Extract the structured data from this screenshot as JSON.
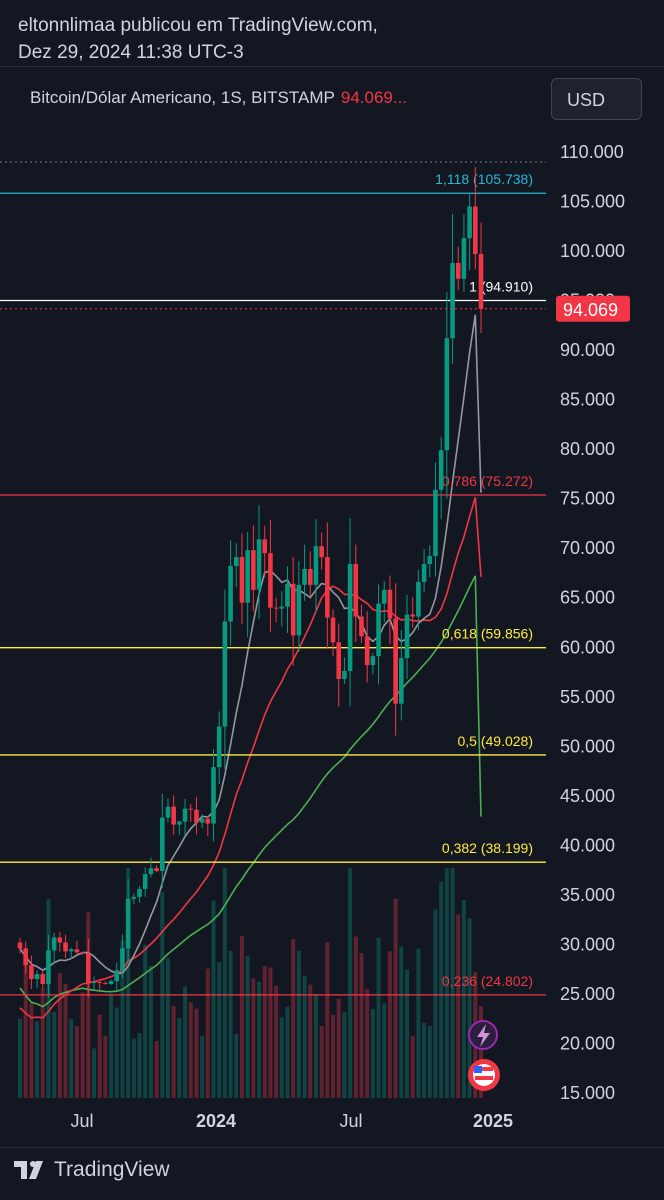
{
  "header": {
    "line1": "eltonnlimaa publicou em TradingView.com,",
    "line2": "Dez 29, 2024 11:38 UTC-3"
  },
  "symbol": {
    "name": "Bitcoin/Dólar Americano, 1S, BITSTAMP",
    "price": "94.069..."
  },
  "currency_button": "USD",
  "footer": {
    "brand": "TradingView",
    "logo_icon": "tradingview-logo-icon"
  },
  "chart_icons": [
    "lightning-icon",
    "us-flag-icon"
  ],
  "colors": {
    "up": "#089981",
    "down": "#f23645",
    "fib_top": "#2bb7d6",
    "fib_red": "#f23645",
    "fib_yellow": "#ffeb3b",
    "fib_white": "#ffffff",
    "ma_fast": "#9598a1",
    "ma_mid": "#f23645",
    "ma_slow": "#4caf50"
  },
  "chart_data": {
    "type": "candlestick",
    "title": "",
    "y_axis": {
      "ticks": [
        "110.000",
        "105.000",
        "100.000",
        "95.000",
        "90.000",
        "85.000",
        "80.000",
        "75.000",
        "70.000",
        "65.000",
        "60.000",
        "55.000",
        "50.000",
        "45.000",
        "40.000",
        "35.000",
        "30.000",
        "25.000",
        "20.000",
        "15.000"
      ],
      "ylim": [
        15000,
        110000
      ],
      "position": "right"
    },
    "x_axis": {
      "ticks": [
        "Jul",
        "2024",
        "Jul",
        "2025"
      ]
    },
    "last_price_label": "94.069",
    "fib_levels": [
      {
        "ratio": "1,118",
        "value": 105738,
        "label": "1,118 (105.738)",
        "color": "fib_top"
      },
      {
        "ratio": "1",
        "value": 94910,
        "label": "1 (94.910)",
        "color": "fib_white"
      },
      {
        "ratio": "0,786",
        "value": 75272,
        "label": "0,786 (75.272)",
        "color": "fib_red"
      },
      {
        "ratio": "0,618",
        "value": 59856,
        "label": "0,618 (59.856)",
        "color": "fib_yellow"
      },
      {
        "ratio": "0,5",
        "value": 49028,
        "label": "0,5 (49.028)",
        "color": "fib_yellow"
      },
      {
        "ratio": "0,382",
        "value": 38199,
        "label": "0,382 (38.199)",
        "color": "fib_yellow"
      },
      {
        "ratio": "0,236",
        "value": 24802,
        "label": "0,236 (24.802)",
        "color": "fib_red"
      }
    ],
    "weekly_close": [
      29500,
      27800,
      26400,
      26900,
      25900,
      29300,
      30600,
      30100,
      29200,
      29400,
      29100,
      29000,
      26000,
      26100,
      26000,
      25900,
      26200,
      27300,
      29500,
      34500,
      34700,
      35500,
      37000,
      37600,
      37300,
      42700,
      43800,
      42000,
      42300,
      43600,
      43500,
      42200,
      42600,
      42100,
      47800,
      51900,
      62500,
      68100,
      69000,
      64400,
      69700,
      65700,
      70800,
      69400,
      63900,
      63800,
      64000,
      66300,
      61100,
      66200,
      67800,
      66200,
      70100,
      69000,
      62900,
      60400,
      56700,
      57500,
      68300,
      63000,
      61000,
      58100,
      59000,
      64300,
      65700,
      62800,
      54200,
      58800,
      63200,
      63000,
      66500,
      68300,
      69100,
      75800,
      79800,
      91100,
      98700,
      97100,
      101200,
      104400,
      99600,
      94069
    ],
    "ma_fast_end": 75500,
    "ma_mid_end": 67000,
    "ma_slow_end": 42800
  }
}
